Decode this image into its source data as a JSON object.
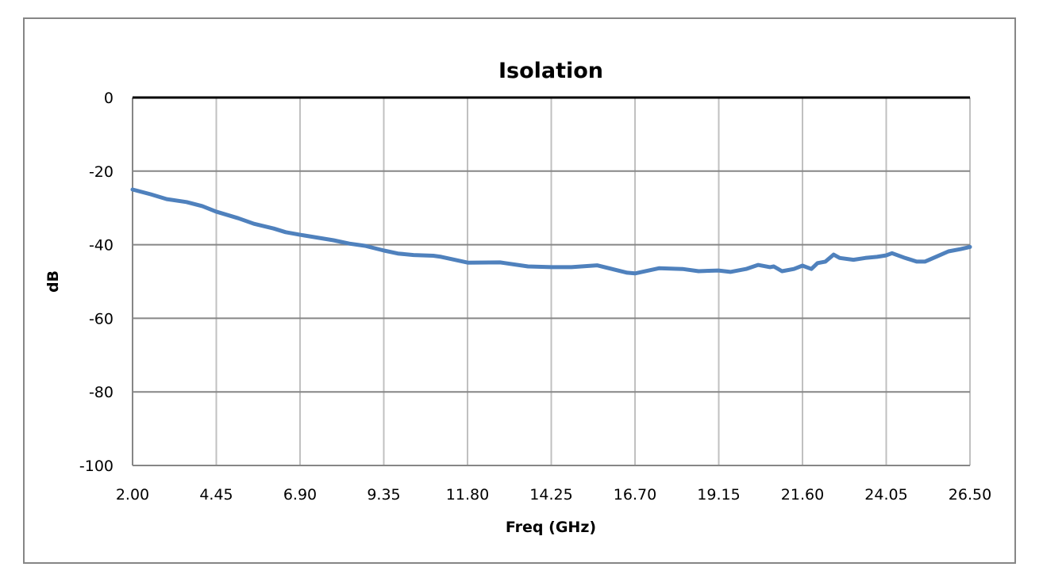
{
  "chart_data": {
    "type": "line",
    "title": "Isolation",
    "xlabel": "Freq (GHz)",
    "ylabel": "dB",
    "xlim": [
      2.0,
      26.5
    ],
    "ylim": [
      -100,
      0
    ],
    "x_ticks": [
      "2.00",
      "4.45",
      "6.90",
      "9.35",
      "11.80",
      "14.25",
      "16.70",
      "19.15",
      "21.60",
      "24.05",
      "26.50"
    ],
    "y_ticks": [
      "0",
      "-20",
      "-40",
      "-60",
      "-80",
      "-100"
    ],
    "grid": true,
    "legend": null,
    "series": [
      {
        "name": "Isolation",
        "color": "#4F81BD",
        "x": [
          2.0,
          2.53,
          3.0,
          3.58,
          4.04,
          4.44,
          5.09,
          5.55,
          6.13,
          6.48,
          6.9,
          7.88,
          8.34,
          8.8,
          9.36,
          9.76,
          10.22,
          10.8,
          11.03,
          11.38,
          11.82,
          12.75,
          13.57,
          14.26,
          14.84,
          15.59,
          16.47,
          16.7,
          17.4,
          18.09,
          18.56,
          19.14,
          19.49,
          19.95,
          20.3,
          20.65,
          20.76,
          21.0,
          21.35,
          21.6,
          21.86,
          22.04,
          22.27,
          22.51,
          22.69,
          23.09,
          23.44,
          23.78,
          24.04,
          24.22,
          24.6,
          24.94,
          25.18,
          25.53,
          25.87,
          26.22,
          26.5
        ],
        "values": [
          -25.0,
          -26.3,
          -27.6,
          -28.4,
          -29.5,
          -31.0,
          -32.8,
          -34.3,
          -35.6,
          -36.6,
          -37.3,
          -38.8,
          -39.7,
          -40.3,
          -41.6,
          -42.4,
          -42.8,
          -43.0,
          -43.3,
          -44.0,
          -44.9,
          -44.8,
          -45.9,
          -46.1,
          -46.1,
          -45.6,
          -47.6,
          -47.8,
          -46.4,
          -46.6,
          -47.2,
          -47.0,
          -47.4,
          -46.6,
          -45.5,
          -46.1,
          -45.9,
          -47.2,
          -46.6,
          -45.7,
          -46.6,
          -45.0,
          -44.6,
          -42.7,
          -43.6,
          -44.1,
          -43.6,
          -43.3,
          -42.9,
          -42.3,
          -43.6,
          -44.6,
          -44.6,
          -43.2,
          -41.8,
          -41.2,
          -40.6
        ]
      }
    ]
  },
  "colors": {
    "line": "#4F81BD",
    "h_grid": "#868686",
    "v_grid": "#C0C0C0",
    "frame": "#868686",
    "top_axis": "#000000"
  }
}
